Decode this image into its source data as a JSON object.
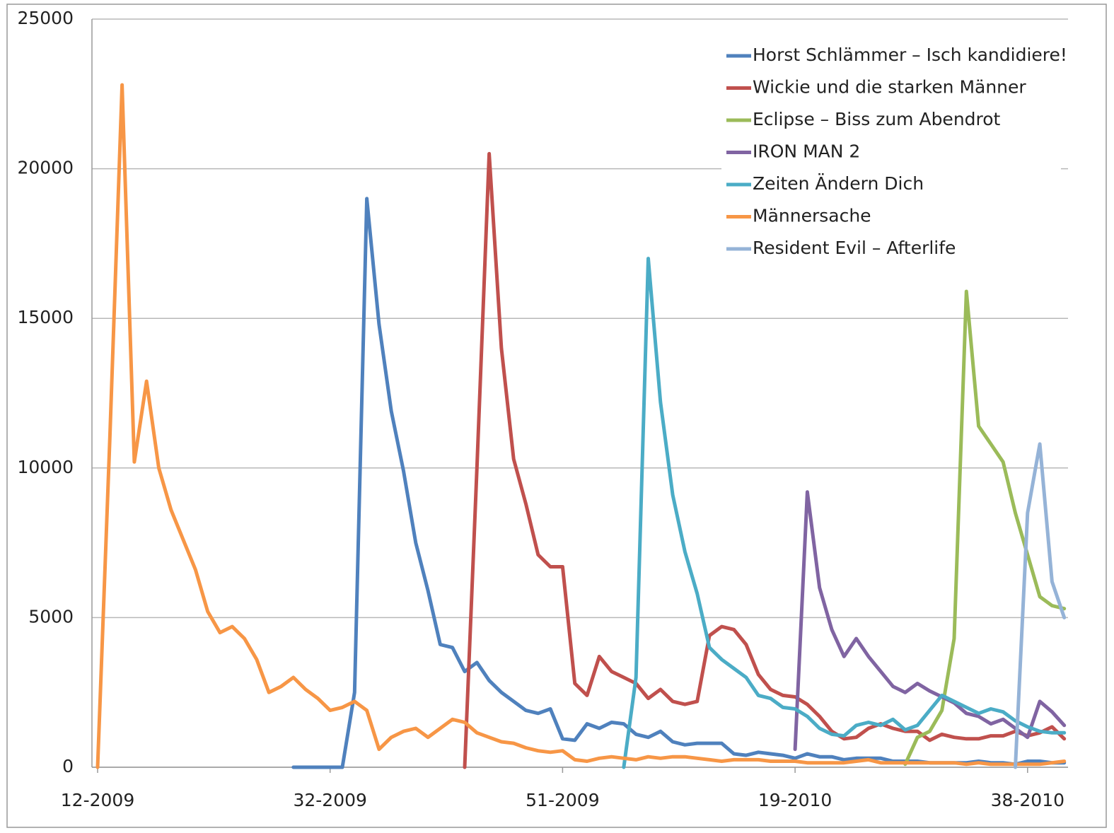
{
  "chart_data": {
    "type": "line",
    "categories": [
      "12-2009",
      null,
      null,
      null,
      null,
      null,
      null,
      null,
      null,
      null,
      null,
      null,
      null,
      null,
      null,
      null,
      null,
      null,
      null,
      "32-2009",
      null,
      null,
      null,
      null,
      null,
      null,
      null,
      null,
      null,
      null,
      null,
      null,
      null,
      null,
      null,
      null,
      null,
      null,
      "51-2009",
      null,
      null,
      null,
      null,
      null,
      null,
      null,
      null,
      null,
      null,
      null,
      null,
      null,
      null,
      null,
      null,
      null,
      null,
      "19-2010",
      null,
      null,
      null,
      null,
      null,
      null,
      null,
      null,
      null,
      null,
      null,
      null,
      null,
      null,
      null,
      null,
      null,
      null,
      "38-2010",
      null,
      null,
      null
    ],
    "ylim": [
      0,
      25000
    ],
    "yticks": [
      0,
      5000,
      10000,
      15000,
      20000,
      25000
    ],
    "grid": true,
    "legend": "upper right",
    "series": [
      {
        "name": "Horst Schlämmer – Isch kandidiere!",
        "color": "#4f81bd",
        "values": [
          null,
          null,
          null,
          null,
          null,
          null,
          null,
          null,
          null,
          null,
          null,
          null,
          null,
          null,
          null,
          null,
          0,
          0,
          0,
          0,
          0,
          2500,
          19000,
          14800,
          11900,
          9900,
          7500,
          5900,
          4100,
          4000,
          3200,
          3500,
          2900,
          2500,
          2200,
          1900,
          1800,
          1950,
          950,
          900,
          1450,
          1300,
          1500,
          1450,
          1100,
          1000,
          1200,
          850,
          750,
          800,
          800,
          800,
          450,
          400,
          500,
          450,
          400,
          300,
          450,
          350,
          350,
          250,
          300,
          300,
          300,
          200,
          200,
          200,
          150,
          150,
          150,
          150,
          200,
          150,
          150,
          100,
          200,
          200,
          150,
          150
        ]
      },
      {
        "name": "Wickie und die starken Männer",
        "color": "#c0504d",
        "values": [
          null,
          null,
          null,
          null,
          null,
          null,
          null,
          null,
          null,
          null,
          null,
          null,
          null,
          null,
          null,
          null,
          null,
          null,
          null,
          null,
          null,
          null,
          null,
          null,
          null,
          null,
          null,
          null,
          null,
          null,
          0,
          10000,
          20500,
          14000,
          10300,
          8800,
          7100,
          6700,
          6700,
          2800,
          2400,
          3700,
          3200,
          3000,
          2800,
          2300,
          2600,
          2200,
          2100,
          2200,
          4400,
          4700,
          4600,
          4100,
          3100,
          2600,
          2400,
          2350,
          2100,
          1700,
          1200,
          950,
          1000,
          1300,
          1450,
          1300,
          1200,
          1200,
          900,
          1100,
          1000,
          950,
          950,
          1050,
          1050,
          1200,
          1050,
          1150,
          1350,
          950
        ]
      },
      {
        "name": "Eclipse – Biss zum Abendrot",
        "color": "#9bbb59",
        "values": [
          null,
          null,
          null,
          null,
          null,
          null,
          null,
          null,
          null,
          null,
          null,
          null,
          null,
          null,
          null,
          null,
          null,
          null,
          null,
          null,
          null,
          null,
          null,
          null,
          null,
          null,
          null,
          null,
          null,
          null,
          null,
          null,
          null,
          null,
          null,
          null,
          null,
          null,
          null,
          null,
          null,
          null,
          null,
          null,
          null,
          null,
          null,
          null,
          null,
          null,
          null,
          null,
          null,
          null,
          null,
          null,
          null,
          null,
          null,
          null,
          null,
          null,
          null,
          null,
          null,
          null,
          100,
          1000,
          1200,
          1900,
          4300,
          15900,
          11400,
          10800,
          10200,
          8500,
          7100,
          5700,
          5400,
          5300
        ]
      },
      {
        "name": "IRON MAN 2",
        "color": "#8064a2",
        "values": [
          null,
          null,
          null,
          null,
          null,
          null,
          null,
          null,
          null,
          null,
          null,
          null,
          null,
          null,
          null,
          null,
          null,
          null,
          null,
          null,
          null,
          null,
          null,
          null,
          null,
          null,
          null,
          null,
          null,
          null,
          null,
          null,
          null,
          null,
          null,
          null,
          null,
          null,
          null,
          null,
          null,
          null,
          null,
          null,
          null,
          null,
          null,
          null,
          null,
          null,
          null,
          null,
          null,
          null,
          null,
          null,
          null,
          600,
          9200,
          6000,
          4600,
          3700,
          4300,
          3700,
          3200,
          2700,
          2500,
          2800,
          2550,
          2350,
          2150,
          1800,
          1700,
          1450,
          1600,
          1300,
          1000,
          2200,
          1850,
          1400
        ]
      },
      {
        "name": "Zeiten Ändern Dich",
        "color": "#4bacc6",
        "values": [
          null,
          null,
          null,
          null,
          null,
          null,
          null,
          null,
          null,
          null,
          null,
          null,
          null,
          null,
          null,
          null,
          null,
          null,
          null,
          null,
          null,
          null,
          null,
          null,
          null,
          null,
          null,
          null,
          null,
          null,
          null,
          null,
          null,
          null,
          null,
          null,
          null,
          null,
          null,
          null,
          null,
          null,
          null,
          0,
          3000,
          17000,
          12200,
          9100,
          7200,
          5800,
          4000,
          3600,
          3300,
          3000,
          2400,
          2300,
          2000,
          1950,
          1700,
          1300,
          1100,
          1050,
          1400,
          1500,
          1400,
          1600,
          1250,
          1400,
          1900,
          2400,
          2200,
          2000,
          1800,
          1950,
          1850,
          1550,
          1350,
          1200,
          1150,
          1150
        ]
      },
      {
        "name": "Männersache",
        "color": "#f79646",
        "values": [
          0,
          11000,
          22800,
          10200,
          12900,
          10000,
          8600,
          7600,
          6600,
          5200,
          4500,
          4700,
          4300,
          3600,
          2500,
          2700,
          3000,
          2600,
          2300,
          1900,
          2000,
          2200,
          1900,
          600,
          1000,
          1200,
          1300,
          1000,
          1300,
          1600,
          1500,
          1150,
          1000,
          850,
          800,
          650,
          550,
          500,
          550,
          250,
          200,
          300,
          350,
          300,
          250,
          350,
          300,
          350,
          350,
          300,
          250,
          200,
          250,
          250,
          250,
          200,
          200,
          200,
          150,
          150,
          150,
          150,
          200,
          250,
          150,
          150,
          150,
          150,
          150,
          150,
          150,
          100,
          150,
          100,
          100,
          100,
          100,
          100,
          150,
          200
        ]
      },
      {
        "name": "Resident Evil – Afterlife",
        "color": "#95b3d7",
        "values": [
          null,
          null,
          null,
          null,
          null,
          null,
          null,
          null,
          null,
          null,
          null,
          null,
          null,
          null,
          null,
          null,
          null,
          null,
          null,
          null,
          null,
          null,
          null,
          null,
          null,
          null,
          null,
          null,
          null,
          null,
          null,
          null,
          null,
          null,
          null,
          null,
          null,
          null,
          null,
          null,
          null,
          null,
          null,
          null,
          null,
          null,
          null,
          null,
          null,
          null,
          null,
          null,
          null,
          null,
          null,
          null,
          null,
          null,
          null,
          null,
          null,
          null,
          null,
          null,
          null,
          null,
          null,
          null,
          null,
          null,
          null,
          null,
          null,
          null,
          null,
          0,
          8500,
          10800,
          6200,
          5000
        ]
      }
    ]
  }
}
